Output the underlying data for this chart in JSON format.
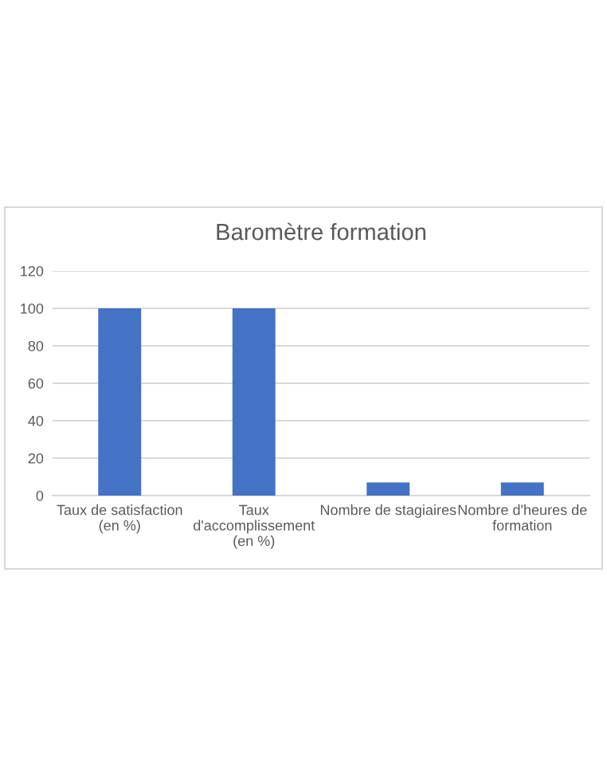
{
  "chart_data": {
    "type": "bar",
    "title": "Baromètre formation",
    "categories": [
      "Taux de satisfaction\n(en %)",
      "Taux\nd'accomplissement\n(en %)",
      "Nombre de stagiaires",
      "Nombre d'heures de\nformation"
    ],
    "values": [
      100,
      100,
      7,
      7
    ],
    "color": "#4472c4",
    "ylim": [
      0,
      120
    ],
    "yticks": [
      0,
      20,
      40,
      60,
      80,
      100,
      120
    ],
    "grid": "y",
    "legend": false
  }
}
